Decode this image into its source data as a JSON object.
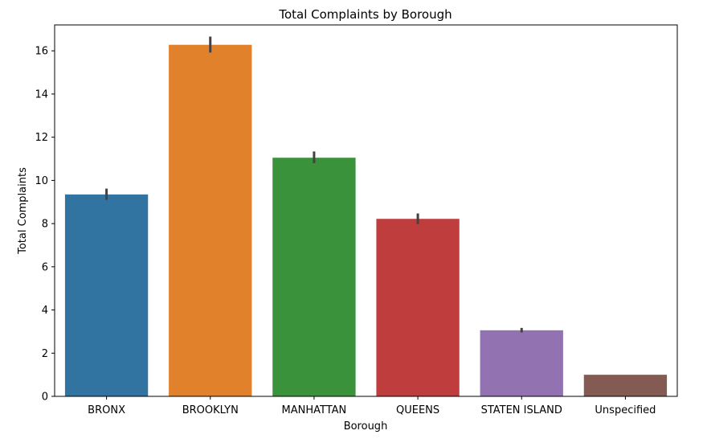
{
  "chart_data": {
    "type": "bar",
    "title": "Total Complaints by Borough",
    "xlabel": "Borough",
    "ylabel": "Total Complaints",
    "categories": [
      "BRONX",
      "BROOKLYN",
      "MANHATTAN",
      "QUEENS",
      "STATEN ISLAND",
      "Unspecified"
    ],
    "values": [
      9.35,
      16.28,
      11.05,
      8.22,
      3.06,
      1.0
    ],
    "error_bars": [
      [
        9.1,
        9.62
      ],
      [
        15.92,
        16.66
      ],
      [
        10.8,
        11.34
      ],
      [
        7.98,
        8.47
      ],
      [
        2.96,
        3.17
      ],
      [
        1.0,
        1.0
      ]
    ],
    "colors": [
      "#3274a1",
      "#e1812c",
      "#3a923a",
      "#c03d3e",
      "#9372b2",
      "#845b53"
    ],
    "ylim": [
      0,
      17.2
    ],
    "yticks": [
      0,
      2,
      4,
      6,
      8,
      10,
      12,
      14,
      16
    ],
    "grid": false
  }
}
